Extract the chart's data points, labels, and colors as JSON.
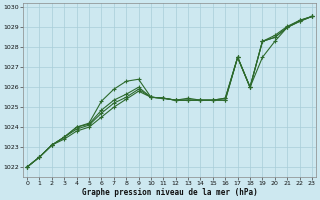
{
  "xlabel": "Graphe pression niveau de la mer (hPa)",
  "x_ticks": [
    0,
    1,
    2,
    3,
    4,
    5,
    6,
    7,
    8,
    9,
    10,
    11,
    12,
    13,
    14,
    15,
    16,
    17,
    18,
    19,
    20,
    21,
    22,
    23
  ],
  "ylim": [
    1021.5,
    1030.2
  ],
  "xlim": [
    -0.3,
    23.3
  ],
  "yticks": [
    1022,
    1023,
    1024,
    1025,
    1026,
    1027,
    1028,
    1029,
    1030
  ],
  "bg_color": "#cde8f0",
  "grid_color": "#a8cdd8",
  "line_color": "#2d6a2d",
  "series": [
    [
      1022.0,
      1022.5,
      1023.1,
      1023.5,
      1024.0,
      1024.2,
      1025.3,
      1025.9,
      1026.3,
      1026.4,
      1025.5,
      1025.45,
      1025.35,
      1025.45,
      1025.35,
      1025.35,
      1025.45,
      1027.5,
      1026.0,
      1027.5,
      1028.3,
      1029.0,
      1029.35,
      1029.55
    ],
    [
      1022.0,
      1022.5,
      1023.1,
      1023.5,
      1024.0,
      1024.15,
      1024.85,
      1025.35,
      1025.65,
      1026.0,
      1025.5,
      1025.45,
      1025.35,
      1025.35,
      1025.35,
      1025.35,
      1025.45,
      1027.5,
      1026.0,
      1028.3,
      1028.6,
      1029.05,
      1029.35,
      1029.55
    ],
    [
      1022.0,
      1022.5,
      1023.1,
      1023.5,
      1023.9,
      1024.1,
      1024.7,
      1025.2,
      1025.5,
      1025.9,
      1025.5,
      1025.45,
      1025.35,
      1025.35,
      1025.35,
      1025.35,
      1025.35,
      1027.5,
      1026.0,
      1028.3,
      1028.5,
      1029.0,
      1029.3,
      1029.55
    ],
    [
      1022.0,
      1022.5,
      1023.1,
      1023.4,
      1023.8,
      1024.0,
      1024.5,
      1025.0,
      1025.4,
      1025.8,
      1025.5,
      1025.45,
      1025.35,
      1025.35,
      1025.35,
      1025.35,
      1025.35,
      1027.5,
      1026.0,
      1028.3,
      1028.5,
      1029.0,
      1029.3,
      1029.55
    ]
  ],
  "marker": "+",
  "markersize": 3,
  "linewidth": 0.8,
  "figsize": [
    3.2,
    2.0
  ],
  "dpi": 100
}
